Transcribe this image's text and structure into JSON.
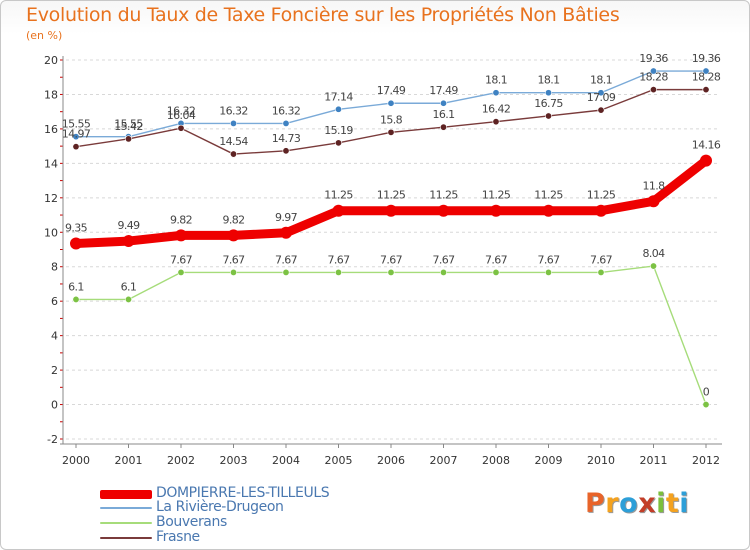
{
  "title": "Evolution du Taux de Taxe Foncière sur les Propriétés Non Bâties",
  "unit_label": "(en %)",
  "logo": {
    "letters": [
      "P",
      "r",
      "o",
      "x",
      "i",
      "t",
      "i"
    ],
    "colors": [
      "#e8642a",
      "#f4a21f",
      "#2d9fd8",
      "#c33e28",
      "#7cbf3c",
      "#f4a21f",
      "#2d9fd8"
    ]
  },
  "chart_data": {
    "type": "line",
    "title": "Evolution du Taux de Taxe Foncière sur les Propriétés Non Bâties",
    "ylabel": "(en %)",
    "x": [
      2000,
      2001,
      2002,
      2003,
      2004,
      2005,
      2006,
      2007,
      2008,
      2009,
      2010,
      2011,
      2012
    ],
    "ylim": [
      -2,
      20
    ],
    "yticks": [
      -2,
      0,
      2,
      4,
      6,
      8,
      10,
      12,
      14,
      16,
      18,
      20
    ],
    "grid": "horizontal dashed",
    "series": [
      {
        "name": "DOMPIERRE-LES-TILLEULS",
        "color": "#ee0000",
        "marker": "#ee0000",
        "values": [
          9.35,
          9.49,
          9.82,
          9.82,
          9.97,
          11.25,
          11.25,
          11.25,
          11.25,
          11.25,
          11.25,
          11.8,
          14.16
        ],
        "labels": [
          "9.35",
          "9.49",
          "9.82",
          "9.82",
          "9.97",
          "11.25",
          "11.25",
          "11.25",
          "11.25",
          "11.25",
          "11.25",
          "11.8",
          "14.16"
        ]
      },
      {
        "name": "La Rivière-Drugeon",
        "color": "#7aaad8",
        "marker": "#3f82c2",
        "values": [
          15.55,
          15.55,
          16.32,
          16.32,
          16.32,
          17.14,
          17.49,
          17.49,
          18.1,
          18.1,
          18.1,
          19.36,
          19.36
        ],
        "labels": [
          "15.55",
          "15.55",
          "16.32",
          "16.32",
          "16.32",
          "17.14",
          "17.49",
          "17.49",
          "18.1",
          "18.1",
          "18.1",
          "19.36",
          "19.36"
        ]
      },
      {
        "name": "Bouverans",
        "color": "#a6dc7a",
        "marker": "#7cc244",
        "values": [
          6.1,
          6.1,
          7.67,
          7.67,
          7.67,
          7.67,
          7.67,
          7.67,
          7.67,
          7.67,
          7.67,
          8.04,
          0
        ],
        "labels": [
          "6.1",
          "6.1",
          "7.67",
          "7.67",
          "7.67",
          "7.67",
          "7.67",
          "7.67",
          "7.67",
          "7.67",
          "7.67",
          "8.04",
          "0"
        ]
      },
      {
        "name": "Frasne",
        "color": "#7a3b3b",
        "marker": "#5e2323",
        "values": [
          14.97,
          15.42,
          16.04,
          14.54,
          14.73,
          15.19,
          15.8,
          16.1,
          16.42,
          16.75,
          17.09,
          18.28,
          18.28
        ],
        "labels": [
          "14.97",
          "15.42",
          "16.04",
          "14.54",
          "14.73",
          "15.19",
          "15.8",
          "16.1",
          "16.42",
          "16.75",
          "17.09",
          "18.28",
          "18.28"
        ]
      }
    ]
  }
}
